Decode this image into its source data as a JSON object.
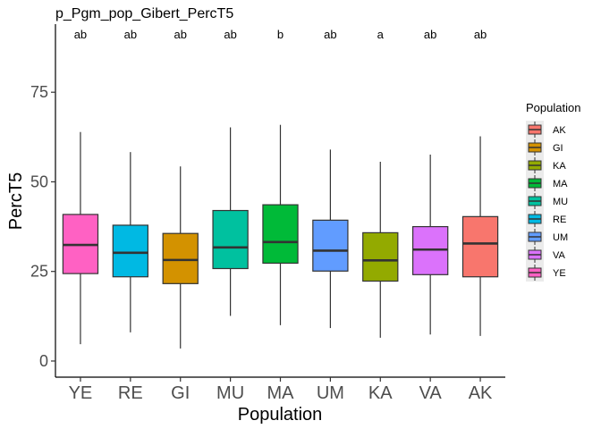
{
  "chart_data": {
    "type": "box",
    "title": "p_Pgm_pop_Gibert_PercT5",
    "xlabel": "Population",
    "ylabel": "PercT5",
    "ylim": [
      -4.5,
      94
    ],
    "yticks": [
      0,
      25,
      50,
      75
    ],
    "grid": false,
    "legend": {
      "title": "Population",
      "placement": "right",
      "items": [
        {
          "label": "AK",
          "color": "#F8766D"
        },
        {
          "label": "GI",
          "color": "#D39200"
        },
        {
          "label": "KA",
          "color": "#93AA00"
        },
        {
          "label": "MA",
          "color": "#00BA38"
        },
        {
          "label": "MU",
          "color": "#00C19F"
        },
        {
          "label": "RE",
          "color": "#00B9E3"
        },
        {
          "label": "UM",
          "color": "#619CFF"
        },
        {
          "label": "VA",
          "color": "#DB72FB"
        },
        {
          "label": "YE",
          "color": "#FF61C3"
        }
      ]
    },
    "categories": [
      "YE",
      "RE",
      "GI",
      "MU",
      "MA",
      "UM",
      "KA",
      "VA",
      "AK"
    ],
    "boxes": [
      {
        "category": "YE",
        "min": 4.7,
        "q1": 24.4,
        "median": 32.4,
        "q3": 40.9,
        "max": 63.9,
        "sig": "ab",
        "color": "#FF61C3"
      },
      {
        "category": "RE",
        "min": 8.0,
        "q1": 23.5,
        "median": 30.2,
        "q3": 37.9,
        "max": 58.3,
        "sig": "ab",
        "color": "#00B9E3"
      },
      {
        "category": "GI",
        "min": 3.5,
        "q1": 21.6,
        "median": 28.2,
        "q3": 35.6,
        "max": 54.3,
        "sig": "ab",
        "color": "#D39200"
      },
      {
        "category": "MU",
        "min": 12.6,
        "q1": 25.8,
        "median": 31.7,
        "q3": 42.0,
        "max": 65.2,
        "sig": "ab",
        "color": "#00C19F"
      },
      {
        "category": "MA",
        "min": 10.0,
        "q1": 27.3,
        "median": 33.2,
        "q3": 43.6,
        "max": 65.9,
        "sig": "b",
        "color": "#00BA38"
      },
      {
        "category": "UM",
        "min": 9.2,
        "q1": 25.1,
        "median": 30.8,
        "q3": 39.3,
        "max": 59.0,
        "sig": "ab",
        "color": "#619CFF"
      },
      {
        "category": "KA",
        "min": 6.5,
        "q1": 22.3,
        "median": 28.1,
        "q3": 35.8,
        "max": 55.6,
        "sig": "a",
        "color": "#93AA00"
      },
      {
        "category": "VA",
        "min": 7.4,
        "q1": 24.1,
        "median": 31.1,
        "q3": 37.5,
        "max": 57.6,
        "sig": "ab",
        "color": "#DB72FB"
      },
      {
        "category": "AK",
        "min": 7.0,
        "q1": 23.5,
        "median": 32.8,
        "q3": 40.3,
        "max": 62.7,
        "sig": "ab",
        "color": "#F8766D"
      }
    ]
  }
}
